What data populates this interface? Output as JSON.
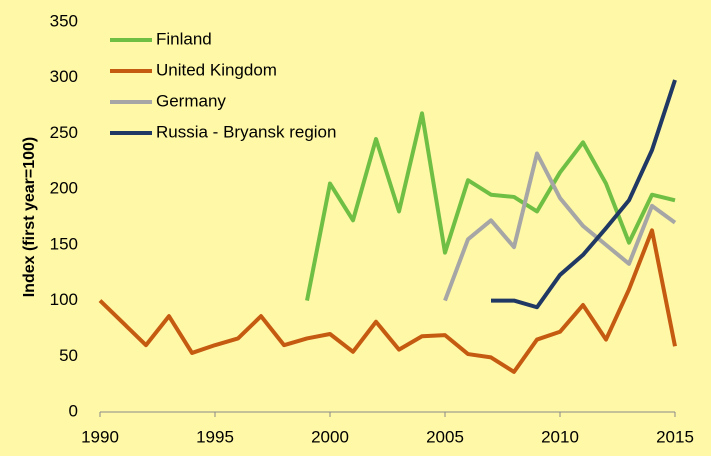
{
  "chart_data": {
    "type": "line",
    "y_label": "Index (first year=100)",
    "x": [
      1990,
      1991,
      1992,
      1993,
      1994,
      1995,
      1996,
      1997,
      1998,
      1999,
      2000,
      2001,
      2002,
      2003,
      2004,
      2005,
      2006,
      2007,
      2008,
      2009,
      2010,
      2011,
      2012,
      2013,
      2014,
      2015
    ],
    "series": [
      {
        "name": "Finland",
        "color": "#70bf45",
        "values": [
          null,
          null,
          null,
          null,
          null,
          null,
          null,
          null,
          null,
          100,
          205,
          172,
          245,
          180,
          268,
          143,
          208,
          195,
          193,
          180,
          215,
          242,
          205,
          152,
          195,
          190
        ]
      },
      {
        "name": "United Kingdom",
        "color": "#c55a11",
        "values": [
          100,
          80,
          60,
          86,
          53,
          60,
          66,
          86,
          60,
          66,
          70,
          54,
          81,
          56,
          68,
          69,
          52,
          49,
          36,
          65,
          72,
          96,
          65,
          110,
          163,
          59
        ]
      },
      {
        "name": "Germany",
        "color": "#a6a6a6",
        "values": [
          null,
          null,
          null,
          null,
          null,
          null,
          null,
          null,
          null,
          null,
          null,
          null,
          null,
          null,
          null,
          100,
          155,
          172,
          148,
          232,
          192,
          167,
          150,
          133,
          185,
          170
        ]
      },
      {
        "name": "Russia - Bryansk region",
        "color": "#203864",
        "values": [
          null,
          null,
          null,
          null,
          null,
          null,
          null,
          null,
          null,
          null,
          null,
          null,
          null,
          null,
          null,
          null,
          null,
          100,
          100,
          94,
          123,
          141,
          165,
          190,
          235,
          298
        ]
      }
    ],
    "xlim": [
      1990,
      2015
    ],
    "xticks": [
      1990,
      1995,
      2000,
      2005,
      2010,
      2015
    ],
    "ylim": [
      0,
      350
    ],
    "yticks": [
      0,
      50,
      100,
      150,
      200,
      250,
      300,
      350
    ],
    "grid": false,
    "legend": "top-left"
  }
}
